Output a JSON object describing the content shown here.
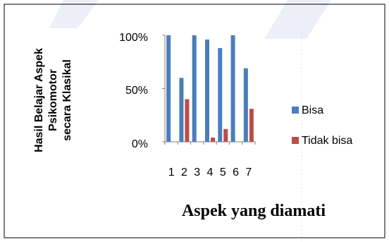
{
  "chart_data": {
    "type": "bar",
    "categories": [
      "1",
      "2",
      "3",
      "4",
      "5",
      "6",
      "7"
    ],
    "series": [
      {
        "name": "Bisa",
        "color": "#4a7ebb",
        "values": [
          100,
          60,
          100,
          96,
          88,
          100,
          69
        ]
      },
      {
        "name": "Tidak bisa",
        "color": "#be4b48",
        "values": [
          0,
          40,
          0,
          4,
          12,
          0,
          31
        ]
      }
    ],
    "ylabel_lines": [
      "Hasil Belajar Aspek",
      "Psikomotor",
      "secara Klasikal"
    ],
    "xlabel": "Aspek yang diamati",
    "ylim": [
      0,
      100
    ],
    "yticks": [
      "0%",
      "50%",
      "100%"
    ],
    "legend": "right"
  }
}
